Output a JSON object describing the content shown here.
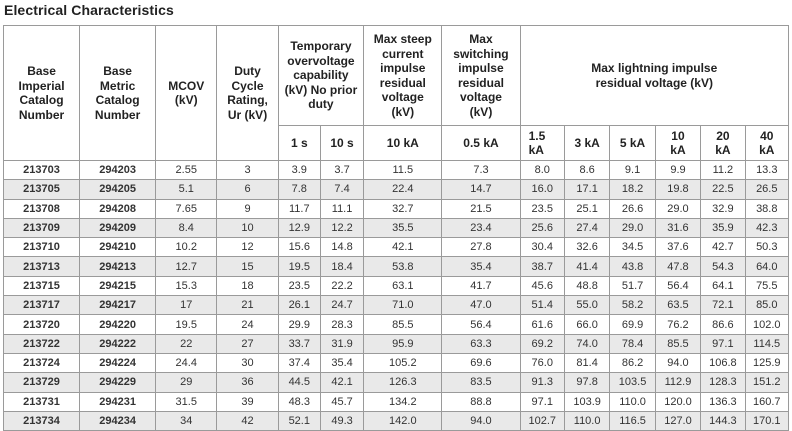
{
  "title": "Electrical Characteristics",
  "headers": {
    "base_imperial": "Base Imperial Catalog Number",
    "base_metric": "Base Metric Catalog Number",
    "mcov": "MCOV (kV)",
    "duty_cycle": "Duty Cycle Rating, Ur (kV)",
    "tov": "Temporary overvoltage capability (kV) No prior duty",
    "steep": "Max steep current impulse residual voltage (kV)",
    "switching": "Max switching impulse residual voltage (kV)",
    "lightning": "Max lightning impulse residual voltage (kV)",
    "tov_1s": "1 s",
    "tov_10s": "10 s",
    "steep_sub": "10 kA",
    "switching_sub": "0.5 kA",
    "l_1_5": "1.5 kA",
    "l_3": "3 kA",
    "l_5": "5 kA",
    "l_10": "10 kA",
    "l_20": "20 kA",
    "l_40": "40 kA"
  },
  "rows": [
    [
      "213703",
      "294203",
      "2.55",
      "3",
      "3.9",
      "3.7",
      "11.5",
      "7.3",
      "8.0",
      "8.6",
      "9.1",
      "9.9",
      "11.2",
      "13.3"
    ],
    [
      "213705",
      "294205",
      "5.1",
      "6",
      "7.8",
      "7.4",
      "22.4",
      "14.7",
      "16.0",
      "17.1",
      "18.2",
      "19.8",
      "22.5",
      "26.5"
    ],
    [
      "213708",
      "294208",
      "7.65",
      "9",
      "11.7",
      "11.1",
      "32.7",
      "21.5",
      "23.5",
      "25.1",
      "26.6",
      "29.0",
      "32.9",
      "38.8"
    ],
    [
      "213709",
      "294209",
      "8.4",
      "10",
      "12.9",
      "12.2",
      "35.5",
      "23.4",
      "25.6",
      "27.4",
      "29.0",
      "31.6",
      "35.9",
      "42.3"
    ],
    [
      "213710",
      "294210",
      "10.2",
      "12",
      "15.6",
      "14.8",
      "42.1",
      "27.8",
      "30.4",
      "32.6",
      "34.5",
      "37.6",
      "42.7",
      "50.3"
    ],
    [
      "213713",
      "294213",
      "12.7",
      "15",
      "19.5",
      "18.4",
      "53.8",
      "35.4",
      "38.7",
      "41.4",
      "43.8",
      "47.8",
      "54.3",
      "64.0"
    ],
    [
      "213715",
      "294215",
      "15.3",
      "18",
      "23.5",
      "22.2",
      "63.1",
      "41.7",
      "45.6",
      "48.8",
      "51.7",
      "56.4",
      "64.1",
      "75.5"
    ],
    [
      "213717",
      "294217",
      "17",
      "21",
      "26.1",
      "24.7",
      "71.0",
      "47.0",
      "51.4",
      "55.0",
      "58.2",
      "63.5",
      "72.1",
      "85.0"
    ],
    [
      "213720",
      "294220",
      "19.5",
      "24",
      "29.9",
      "28.3",
      "85.5",
      "56.4",
      "61.6",
      "66.0",
      "69.9",
      "76.2",
      "86.6",
      "102.0"
    ],
    [
      "213722",
      "294222",
      "22",
      "27",
      "33.7",
      "31.9",
      "95.9",
      "63.3",
      "69.2",
      "74.0",
      "78.4",
      "85.5",
      "97.1",
      "114.5"
    ],
    [
      "213724",
      "294224",
      "24.4",
      "30",
      "37.4",
      "35.4",
      "105.2",
      "69.6",
      "76.0",
      "81.4",
      "86.2",
      "94.0",
      "106.8",
      "125.9"
    ],
    [
      "213729",
      "294229",
      "29",
      "36",
      "44.5",
      "42.1",
      "126.3",
      "83.5",
      "91.3",
      "97.8",
      "103.5",
      "112.9",
      "128.3",
      "151.2"
    ],
    [
      "213731",
      "294231",
      "31.5",
      "39",
      "48.3",
      "45.7",
      "134.2",
      "88.8",
      "97.1",
      "103.9",
      "110.0",
      "120.0",
      "136.3",
      "160.7"
    ],
    [
      "213734",
      "294234",
      "34",
      "42",
      "52.1",
      "49.3",
      "142.0",
      "94.0",
      "102.7",
      "110.0",
      "116.5",
      "127.0",
      "144.3",
      "170.1"
    ]
  ]
}
